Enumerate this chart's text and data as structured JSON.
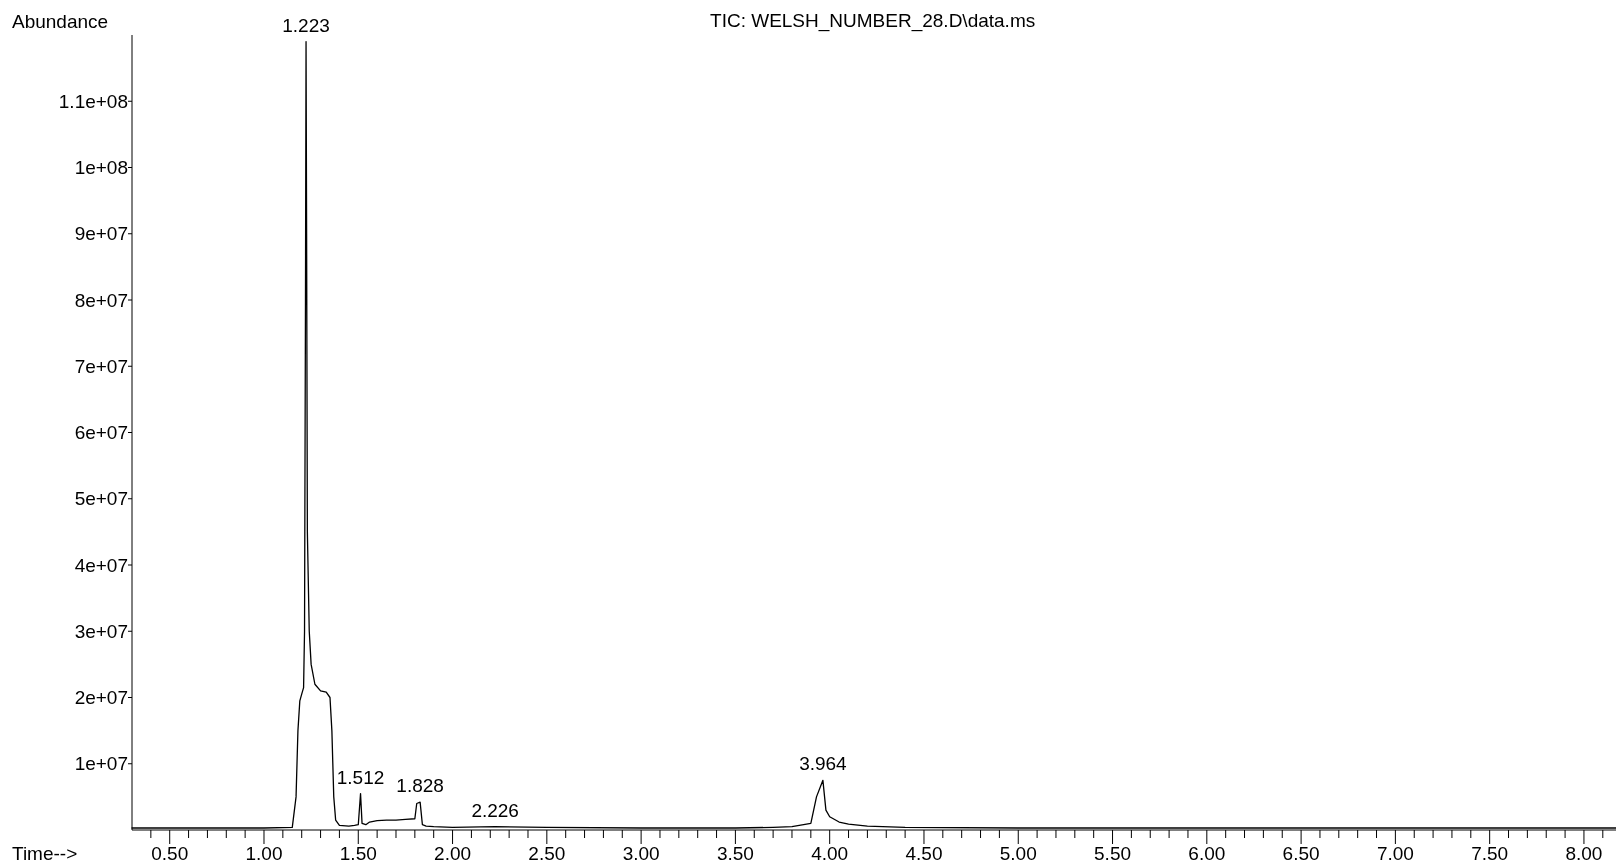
{
  "chart_data": {
    "type": "line",
    "title": "TIC: WELSH_NUMBER_28.D\\data.ms",
    "xlabel": "Time-->",
    "ylabel": "Abundance",
    "xlim": [
      0.3,
      8.17
    ],
    "ylim": [
      0,
      120000000
    ],
    "xticks": [
      {
        "value": 0.4,
        "label": null
      },
      {
        "value": 0.5,
        "label": "0.50"
      },
      {
        "value": 0.6,
        "label": null
      },
      {
        "value": 0.7,
        "label": null
      },
      {
        "value": 0.8,
        "label": null
      },
      {
        "value": 0.9,
        "label": null
      },
      {
        "value": 1.0,
        "label": "1.00"
      },
      {
        "value": 1.1,
        "label": null
      },
      {
        "value": 1.2,
        "label": null
      },
      {
        "value": 1.3,
        "label": null
      },
      {
        "value": 1.4,
        "label": null
      },
      {
        "value": 1.5,
        "label": "1.50"
      },
      {
        "value": 1.6,
        "label": null
      },
      {
        "value": 1.7,
        "label": null
      },
      {
        "value": 1.8,
        "label": null
      },
      {
        "value": 1.9,
        "label": null
      },
      {
        "value": 2.0,
        "label": "2.00"
      },
      {
        "value": 2.1,
        "label": null
      },
      {
        "value": 2.2,
        "label": null
      },
      {
        "value": 2.3,
        "label": null
      },
      {
        "value": 2.4,
        "label": null
      },
      {
        "value": 2.5,
        "label": "2.50"
      },
      {
        "value": 2.6,
        "label": null
      },
      {
        "value": 2.7,
        "label": null
      },
      {
        "value": 2.8,
        "label": null
      },
      {
        "value": 2.9,
        "label": null
      },
      {
        "value": 3.0,
        "label": "3.00"
      },
      {
        "value": 3.1,
        "label": null
      },
      {
        "value": 3.2,
        "label": null
      },
      {
        "value": 3.3,
        "label": null
      },
      {
        "value": 3.4,
        "label": null
      },
      {
        "value": 3.5,
        "label": "3.50"
      },
      {
        "value": 3.6,
        "label": null
      },
      {
        "value": 3.7,
        "label": null
      },
      {
        "value": 3.8,
        "label": null
      },
      {
        "value": 3.9,
        "label": null
      },
      {
        "value": 4.0,
        "label": "4.00"
      },
      {
        "value": 4.1,
        "label": null
      },
      {
        "value": 4.2,
        "label": null
      },
      {
        "value": 4.3,
        "label": null
      },
      {
        "value": 4.4,
        "label": null
      },
      {
        "value": 4.5,
        "label": "4.50"
      },
      {
        "value": 4.6,
        "label": null
      },
      {
        "value": 4.7,
        "label": null
      },
      {
        "value": 4.8,
        "label": null
      },
      {
        "value": 4.9,
        "label": null
      },
      {
        "value": 5.0,
        "label": "5.00"
      },
      {
        "value": 5.1,
        "label": null
      },
      {
        "value": 5.2,
        "label": null
      },
      {
        "value": 5.3,
        "label": null
      },
      {
        "value": 5.4,
        "label": null
      },
      {
        "value": 5.5,
        "label": "5.50"
      },
      {
        "value": 5.6,
        "label": null
      },
      {
        "value": 5.7,
        "label": null
      },
      {
        "value": 5.8,
        "label": null
      },
      {
        "value": 5.9,
        "label": null
      },
      {
        "value": 6.0,
        "label": "6.00"
      },
      {
        "value": 6.1,
        "label": null
      },
      {
        "value": 6.2,
        "label": null
      },
      {
        "value": 6.3,
        "label": null
      },
      {
        "value": 6.4,
        "label": null
      },
      {
        "value": 6.5,
        "label": "6.50"
      },
      {
        "value": 6.6,
        "label": null
      },
      {
        "value": 6.7,
        "label": null
      },
      {
        "value": 6.8,
        "label": null
      },
      {
        "value": 6.9,
        "label": null
      },
      {
        "value": 7.0,
        "label": "7.00"
      },
      {
        "value": 7.1,
        "label": null
      },
      {
        "value": 7.2,
        "label": null
      },
      {
        "value": 7.3,
        "label": null
      },
      {
        "value": 7.4,
        "label": null
      },
      {
        "value": 7.5,
        "label": "7.50"
      },
      {
        "value": 7.6,
        "label": null
      },
      {
        "value": 7.7,
        "label": null
      },
      {
        "value": 7.8,
        "label": null
      },
      {
        "value": 7.9,
        "label": null
      },
      {
        "value": 8.0,
        "label": "8.00"
      },
      {
        "value": 8.1,
        "label": null
      }
    ],
    "yticks": [
      {
        "value": 10000000,
        "label": "1e+07"
      },
      {
        "value": 20000000,
        "label": "2e+07"
      },
      {
        "value": 30000000,
        "label": "3e+07"
      },
      {
        "value": 40000000,
        "label": "4e+07"
      },
      {
        "value": 50000000,
        "label": "5e+07"
      },
      {
        "value": 60000000,
        "label": "6e+07"
      },
      {
        "value": 70000000,
        "label": "7e+07"
      },
      {
        "value": 80000000,
        "label": "8e+07"
      },
      {
        "value": 90000000,
        "label": "9e+07"
      },
      {
        "value": 100000000,
        "label": "1e+08"
      },
      {
        "value": 110000000,
        "label": "1.1e+08"
      }
    ],
    "series": [
      {
        "color": "#000000",
        "x": [
          0.3,
          1.0,
          1.15,
          1.17,
          1.18,
          1.19,
          1.2,
          1.21,
          1.215,
          1.22,
          1.223,
          1.226,
          1.23,
          1.24,
          1.25,
          1.27,
          1.3,
          1.33,
          1.35,
          1.36,
          1.37,
          1.38,
          1.4,
          1.45,
          1.48,
          1.5,
          1.512,
          1.52,
          1.54,
          1.56,
          1.6,
          1.65,
          1.7,
          1.75,
          1.8,
          1.81,
          1.828,
          1.84,
          1.86,
          1.9,
          2.0,
          2.226,
          2.5,
          3.0,
          3.5,
          3.7,
          3.8,
          3.9,
          3.93,
          3.964,
          3.98,
          4.0,
          4.05,
          4.1,
          4.2,
          4.4,
          5.0,
          6.0,
          7.0,
          8.0,
          8.17
        ],
        "values": [
          300000,
          300000,
          400000,
          5000000,
          15000000,
          19500000,
          20500000,
          21500000,
          30000000,
          80000000,
          119000000,
          90000000,
          45000000,
          30000000,
          25000000,
          22000000,
          21000000,
          20800000,
          20000000,
          15000000,
          5000000,
          1500000,
          700000,
          600000,
          700000,
          800000,
          5500000,
          1000000,
          800000,
          1200000,
          1400000,
          1500000,
          1500000,
          1600000,
          1700000,
          4000000,
          4200000,
          800000,
          600000,
          500000,
          400000,
          500000,
          400000,
          300000,
          300000,
          400000,
          500000,
          1000000,
          5000000,
          7500000,
          3000000,
          2000000,
          1200000,
          900000,
          600000,
          400000,
          300000,
          300000,
          300000,
          300000,
          300000
        ]
      }
    ],
    "annotations": [
      {
        "text": "1.223",
        "x": 1.223,
        "y": 119000000
      },
      {
        "text": "1.512",
        "x": 1.512,
        "y": 5500000
      },
      {
        "text": "1.828",
        "x": 1.828,
        "y": 4200000
      },
      {
        "text": "2.226",
        "x": 2.226,
        "y": 500000
      },
      {
        "text": "3.964",
        "x": 3.964,
        "y": 7500000
      }
    ],
    "grid": false,
    "marker": "none",
    "line_style": "solid"
  }
}
